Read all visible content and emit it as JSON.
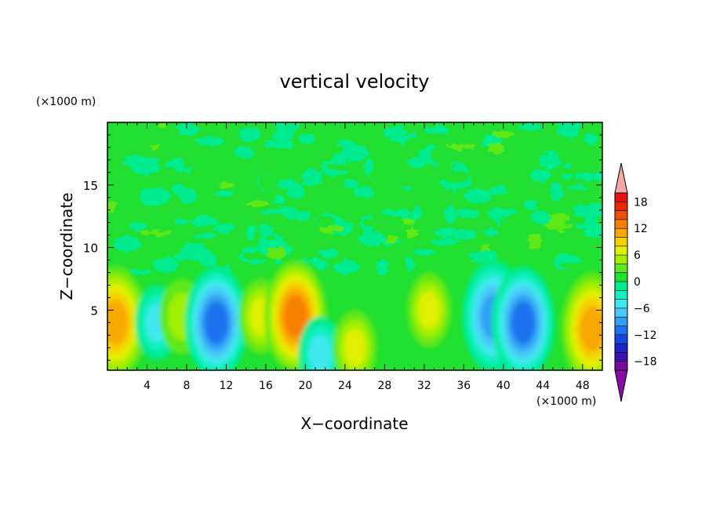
{
  "chart_data": {
    "type": "heatmap",
    "title": "vertical velocity",
    "xlabel": "X−coordinate",
    "ylabel": "Z−coordinate",
    "x_unit": "(×1000 m)",
    "y_unit": "(×1000 m)",
    "xlim": [
      0,
      50
    ],
    "ylim": [
      0.2,
      20
    ],
    "x_ticks": [
      4,
      8,
      12,
      16,
      20,
      24,
      28,
      32,
      36,
      40,
      44,
      48
    ],
    "x_tick_labels": [
      "4",
      "8",
      "12",
      "16",
      "20",
      "24",
      "28",
      "32",
      "36",
      "40",
      "44",
      "48"
    ],
    "y_ticks": [
      5,
      10,
      15
    ],
    "y_tick_labels": [
      "5",
      "10",
      "15"
    ],
    "colorbar": {
      "levels": [
        -20,
        -18,
        -16,
        -14,
        -12,
        -10,
        -8,
        -6,
        -4,
        -2,
        0,
        2,
        4,
        6,
        8,
        10,
        12,
        14,
        16,
        18,
        20
      ],
      "tick_values": [
        -18,
        -12,
        -6,
        0,
        6,
        12,
        18
      ],
      "tick_labels": [
        "−18",
        "−12",
        "−6",
        "0",
        "6",
        "12",
        "18"
      ],
      "colors": [
        "#7a0a9e",
        "#3a10b0",
        "#1a22c8",
        "#1546e0",
        "#1f72ee",
        "#2fa0f5",
        "#48c8f8",
        "#40e8f0",
        "#10f0c0",
        "#00ec90",
        "#20e030",
        "#60e818",
        "#a0f000",
        "#e0f000",
        "#f8d000",
        "#f8a800",
        "#f88000",
        "#f05000",
        "#e82800",
        "#e81010"
      ],
      "over_color": "#f5a8a8",
      "under_color": "#8a0aa8"
    },
    "background_value_color": "#20e030",
    "features": [
      {
        "x": 0.8,
        "z": 4.0,
        "value": 10
      },
      {
        "x": 5.0,
        "z": 4.0,
        "value": -6
      },
      {
        "x": 7.5,
        "z": 4.5,
        "value": 4
      },
      {
        "x": 11.0,
        "z": 4.0,
        "value": -12
      },
      {
        "x": 15.5,
        "z": 4.5,
        "value": 6
      },
      {
        "x": 19.0,
        "z": 4.5,
        "value": 12
      },
      {
        "x": 21.5,
        "z": 1.5,
        "value": -6
      },
      {
        "x": 25.0,
        "z": 2.0,
        "value": 6
      },
      {
        "x": 32.5,
        "z": 5.0,
        "value": 6
      },
      {
        "x": 39.0,
        "z": 4.5,
        "value": -10
      },
      {
        "x": 42.0,
        "z": 4.0,
        "value": -12
      },
      {
        "x": 49.0,
        "z": 3.5,
        "value": 10
      }
    ]
  }
}
